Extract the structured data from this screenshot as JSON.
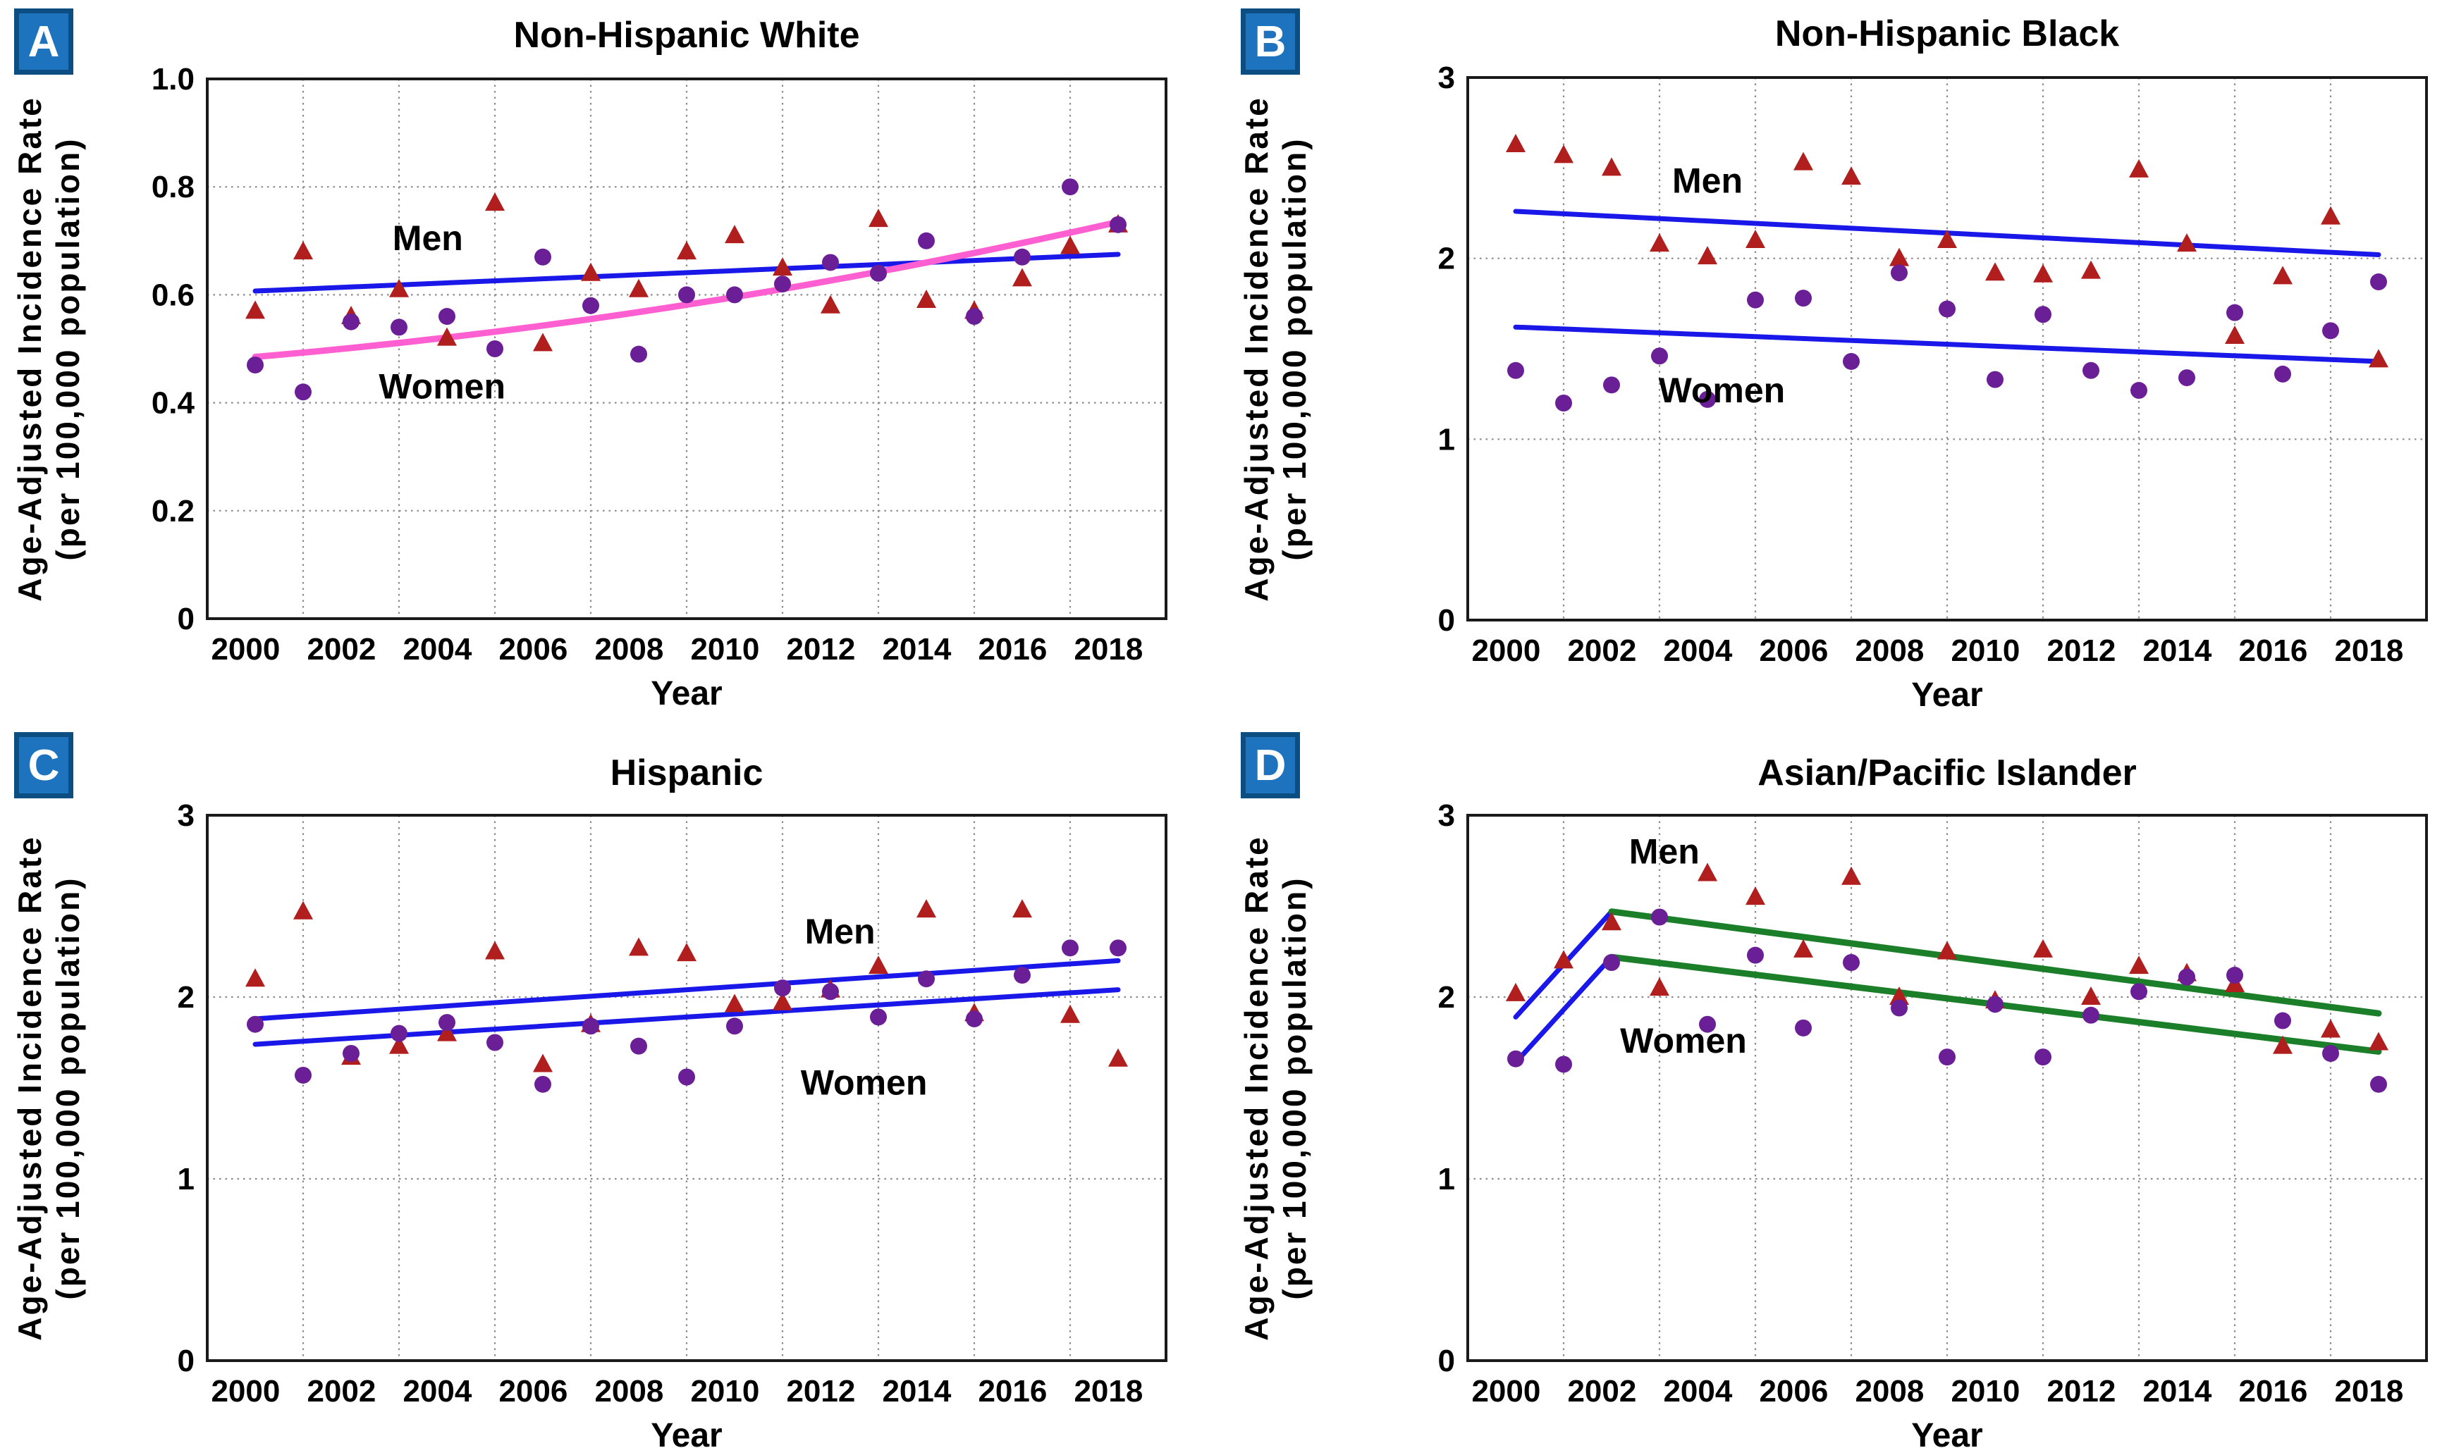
{
  "figure": {
    "xlabel": "Year",
    "ylabel_line1": "Age-Adjusted Incidence Rate",
    "ylabel_line2": "(per 100,000 population)"
  },
  "colors": {
    "men_marker": "#B01E1E",
    "women_marker": "#6B1F97",
    "trend_blue": "#1A18E8",
    "trend_pink": "#FF5FD1",
    "trend_green": "#1B7E28",
    "badge_fill": "#1E73BE",
    "badge_border": "#0D4E82",
    "grid": "#8a8a8a",
    "spine": "#1a1a1a",
    "text": "#000000"
  },
  "chart_data": [
    {
      "panel_label": "A",
      "title": "Non-Hispanic White",
      "type": "scatter",
      "xlabel": "Year",
      "ylabel_line1": "Age-Adjusted Incidence Rate",
      "ylabel_line2": "(per 100,000 population)",
      "xlim": [
        2000,
        2020
      ],
      "ylim": [
        0,
        1
      ],
      "yticks": [
        0,
        0.2,
        0.4,
        0.6,
        0.8,
        1
      ],
      "ytick_labels": [
        "0",
        "0.2",
        "0.4",
        "0.6",
        "0.8",
        "1.0"
      ],
      "xticks": [
        2000,
        2002,
        2004,
        2006,
        2008,
        2010,
        2012,
        2014,
        2016,
        2018
      ],
      "x": [
        2001,
        2002,
        2003,
        2004,
        2005,
        2006,
        2007,
        2008,
        2009,
        2010,
        2011,
        2012,
        2013,
        2014,
        2015,
        2016,
        2017,
        2018,
        2019
      ],
      "series": [
        {
          "name": "Men",
          "marker": "triangle",
          "color_key": "men_marker",
          "values": [
            0.57,
            0.68,
            0.56,
            0.61,
            0.52,
            0.77,
            0.51,
            0.64,
            0.61,
            0.68,
            0.71,
            0.65,
            0.58,
            0.74,
            0.59,
            0.57,
            0.63,
            0.69,
            0.73
          ]
        },
        {
          "name": "Women",
          "marker": "circle",
          "color_key": "women_marker",
          "values": [
            0.47,
            0.42,
            0.55,
            0.54,
            0.56,
            0.5,
            0.67,
            0.58,
            0.49,
            0.6,
            0.6,
            0.62,
            0.66,
            0.64,
            0.7,
            0.56,
            0.67,
            0.8,
            0.73
          ]
        }
      ],
      "trendlines": [
        {
          "series": "Men",
          "color_key": "trend_blue",
          "width": 7,
          "points": [
            [
              2001,
              0.607
            ],
            [
              2019,
              0.675
            ]
          ]
        },
        {
          "series": "Women",
          "color_key": "trend_pink",
          "width": 9,
          "points": [
            [
              2001,
              0.485
            ],
            [
              2019,
              0.735
            ]
          ],
          "curve_control": [
            2010,
            0.553
          ]
        }
      ],
      "labels": [
        {
          "text": "Men",
          "at": [
            2004.6,
            0.705
          ]
        },
        {
          "text": "Women",
          "at": [
            2004.9,
            0.43
          ]
        }
      ]
    },
    {
      "panel_label": "B",
      "title": "Non-Hispanic Black",
      "type": "scatter",
      "xlabel": "Year",
      "ylabel_line1": "Age-Adjusted Incidence Rate",
      "ylabel_line2": "(per 100,000 population)",
      "xlim": [
        2000,
        2020
      ],
      "ylim": [
        0,
        3
      ],
      "yticks": [
        0,
        1,
        2,
        3
      ],
      "ytick_labels": [
        "0",
        "1",
        "2",
        "3"
      ],
      "xticks": [
        2000,
        2002,
        2004,
        2006,
        2008,
        2010,
        2012,
        2014,
        2016,
        2018
      ],
      "x": [
        2001,
        2002,
        2003,
        2004,
        2005,
        2006,
        2007,
        2008,
        2009,
        2010,
        2011,
        2012,
        2013,
        2014,
        2015,
        2016,
        2017,
        2018,
        2019
      ],
      "series": [
        {
          "name": "Men",
          "marker": "triangle",
          "color_key": "men_marker",
          "values": [
            2.63,
            2.57,
            2.5,
            2.08,
            2.01,
            2.1,
            2.53,
            2.45,
            2.0,
            2.1,
            1.92,
            1.91,
            1.93,
            2.49,
            2.08,
            1.57,
            1.9,
            2.23,
            1.44
          ]
        },
        {
          "name": "Women",
          "marker": "circle",
          "color_key": "women_marker",
          "values": [
            1.38,
            1.2,
            1.3,
            1.46,
            1.22,
            1.77,
            1.78,
            1.43,
            1.92,
            1.72,
            1.33,
            1.69,
            1.38,
            1.27,
            1.34,
            1.7,
            1.36,
            1.6,
            1.87
          ]
        }
      ],
      "trendlines": [
        {
          "series": "Men",
          "color_key": "trend_blue",
          "width": 7,
          "points": [
            [
              2001,
              2.26
            ],
            [
              2019,
              2.02
            ]
          ]
        },
        {
          "series": "Women",
          "color_key": "trend_blue",
          "width": 7,
          "points": [
            [
              2001,
              1.62
            ],
            [
              2019,
              1.43
            ]
          ]
        }
      ],
      "labels": [
        {
          "text": "Men",
          "at": [
            2005.0,
            2.43
          ]
        },
        {
          "text": "Women",
          "at": [
            2005.3,
            1.27
          ]
        }
      ]
    },
    {
      "panel_label": "C",
      "title": "Hispanic",
      "type": "scatter",
      "xlabel": "Year",
      "ylabel_line1": "Age-Adjusted Incidence Rate",
      "ylabel_line2": "(per 100,000 population)",
      "xlim": [
        2000,
        2020
      ],
      "ylim": [
        0,
        3
      ],
      "yticks": [
        0,
        1,
        2,
        3
      ],
      "ytick_labels": [
        "0",
        "1",
        "2",
        "3"
      ],
      "xticks": [
        2000,
        2002,
        2004,
        2006,
        2008,
        2010,
        2012,
        2014,
        2016,
        2018
      ],
      "x": [
        2001,
        2002,
        2003,
        2004,
        2005,
        2006,
        2007,
        2008,
        2009,
        2010,
        2011,
        2012,
        2013,
        2014,
        2015,
        2016,
        2017,
        2018,
        2019
      ],
      "series": [
        {
          "name": "Men",
          "marker": "triangle",
          "color_key": "men_marker",
          "values": [
            2.1,
            2.47,
            1.67,
            1.73,
            1.8,
            2.25,
            1.63,
            1.85,
            2.27,
            2.24,
            1.96,
            1.97,
            2.04,
            2.17,
            2.48,
            1.91,
            2.48,
            1.9,
            1.66
          ]
        },
        {
          "name": "Women",
          "marker": "circle",
          "color_key": "women_marker",
          "values": [
            1.85,
            1.57,
            1.69,
            1.8,
            1.86,
            1.75,
            1.52,
            1.84,
            1.73,
            1.56,
            1.84,
            2.05,
            2.03,
            1.89,
            2.1,
            1.88,
            2.12,
            2.27,
            2.27
          ]
        }
      ],
      "trendlines": [
        {
          "series": "Men",
          "color_key": "trend_blue",
          "width": 7,
          "points": [
            [
              2001,
              1.88
            ],
            [
              2019,
              2.2
            ]
          ]
        },
        {
          "series": "Women",
          "color_key": "trend_blue",
          "width": 7,
          "points": [
            [
              2001,
              1.74
            ],
            [
              2019,
              2.04
            ]
          ]
        }
      ],
      "labels": [
        {
          "text": "Men",
          "at": [
            2013.2,
            2.36
          ]
        },
        {
          "text": "Women",
          "at": [
            2013.7,
            1.53
          ]
        }
      ]
    },
    {
      "panel_label": "D",
      "title": "Asian/Pacific Islander",
      "type": "scatter",
      "xlabel": "Year",
      "ylabel_line1": "Age-Adjusted Incidence Rate",
      "ylabel_line2": "(per 100,000 population)",
      "xlim": [
        2000,
        2020
      ],
      "ylim": [
        0,
        3
      ],
      "yticks": [
        0,
        1,
        2,
        3
      ],
      "ytick_labels": [
        "0",
        "1",
        "2",
        "3"
      ],
      "xticks": [
        2000,
        2002,
        2004,
        2006,
        2008,
        2010,
        2012,
        2014,
        2016,
        2018
      ],
      "x": [
        2001,
        2002,
        2003,
        2004,
        2005,
        2006,
        2007,
        2008,
        2009,
        2010,
        2011,
        2012,
        2013,
        2014,
        2015,
        2016,
        2017,
        2018,
        2019
      ],
      "series": [
        {
          "name": "Men",
          "marker": "triangle",
          "color_key": "men_marker",
          "values": [
            2.02,
            2.2,
            2.41,
            2.05,
            2.68,
            2.55,
            2.26,
            2.66,
            2.0,
            2.25,
            1.98,
            2.26,
            2.0,
            2.17,
            2.13,
            2.07,
            1.73,
            1.82,
            1.75
          ]
        },
        {
          "name": "Women",
          "marker": "circle",
          "color_key": "women_marker",
          "values": [
            1.66,
            1.63,
            2.19,
            2.44,
            1.85,
            2.23,
            1.83,
            2.19,
            1.94,
            1.67,
            1.96,
            1.67,
            1.9,
            2.03,
            2.11,
            2.12,
            1.87,
            1.69,
            1.52
          ]
        }
      ],
      "trendlines": [
        {
          "series": "Men",
          "color_key": "trend_blue",
          "width": 7,
          "points": [
            [
              2001,
              1.89
            ],
            [
              2003,
              2.47
            ]
          ]
        },
        {
          "series": "Men",
          "color_key": "trend_green",
          "width": 9,
          "points": [
            [
              2003,
              2.47
            ],
            [
              2019,
              1.91
            ]
          ]
        },
        {
          "series": "Women",
          "color_key": "trend_blue",
          "width": 7,
          "points": [
            [
              2001,
              1.64
            ],
            [
              2003,
              2.22
            ]
          ]
        },
        {
          "series": "Women",
          "color_key": "trend_green",
          "width": 9,
          "points": [
            [
              2003,
              2.22
            ],
            [
              2019,
              1.7
            ]
          ]
        }
      ],
      "labels": [
        {
          "text": "Men",
          "at": [
            2004.1,
            2.8
          ]
        },
        {
          "text": "Women",
          "at": [
            2004.5,
            1.76
          ]
        }
      ]
    }
  ]
}
